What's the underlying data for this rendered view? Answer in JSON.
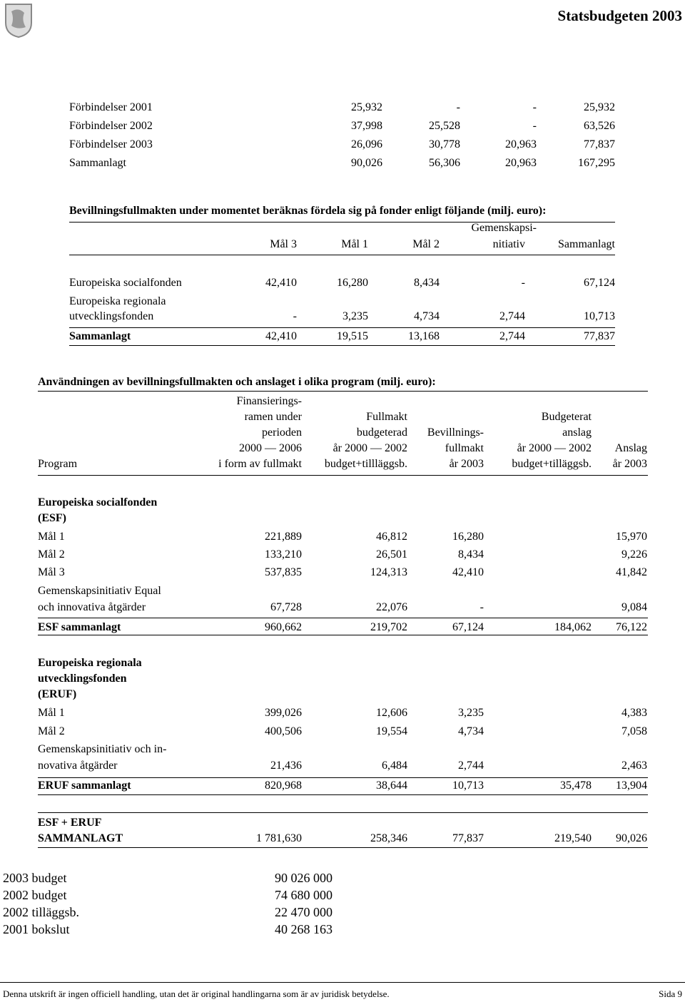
{
  "header": {
    "title": "Statsbudgeten 2003"
  },
  "table1": {
    "rows": [
      {
        "label": "Förbindelser 2001",
        "values": [
          "25,932",
          "-",
          "-",
          "25,932"
        ]
      },
      {
        "label": "Förbindelser 2002",
        "values": [
          "37,998",
          "25,528",
          "-",
          "63,526"
        ]
      },
      {
        "label": "Förbindelser 2003",
        "values": [
          "26,096",
          "30,778",
          "20,963",
          "77,837"
        ]
      },
      {
        "label": "Sammanlagt",
        "values": [
          "90,026",
          "56,306",
          "20,963",
          "167,295"
        ]
      }
    ]
  },
  "table2": {
    "title": "Bevillningsfullmakten under momentet beräknas fördela sig på fonder enligt följande (milj. euro):",
    "columns": [
      [
        "Mål 3"
      ],
      [
        "Mål 1"
      ],
      [
        "Mål 2"
      ],
      [
        "Gemenskapsi-",
        "nitiativ"
      ],
      [
        "Sammanlagt"
      ]
    ],
    "rows": [
      {
        "label": [
          "Europeiska socialfonden"
        ],
        "values": [
          "42,410",
          "16,280",
          "8,434",
          "-",
          "67,124"
        ]
      },
      {
        "label": [
          "Europeiska regionala",
          "utvecklingsfonden"
        ],
        "values": [
          "-",
          "3,235",
          "4,734",
          "2,744",
          "10,713"
        ]
      },
      {
        "label": [
          "Sammanlagt"
        ],
        "values": [
          "42,410",
          "19,515",
          "13,168",
          "2,744",
          "77,837"
        ]
      }
    ]
  },
  "table3": {
    "title": "Användningen av bevillningsfullmakten och anslaget i olika program (milj. euro):",
    "program_header": "Program",
    "columns": [
      [
        "Finansierings-",
        "ramen under",
        "perioden",
        "2000 — 2006",
        "i form av fullmakt"
      ],
      [
        "Fullmakt",
        "budgeterad",
        "år 2000 — 2002",
        "budget+tillläggsb."
      ],
      [
        "Bevillnings-",
        "fullmakt",
        "år 2003"
      ],
      [
        "Budgeterat",
        "anslag",
        "år 2000 — 2002",
        "budget+tilläggsb."
      ],
      [
        "Anslag",
        "år 2003"
      ]
    ],
    "sections": [
      {
        "heading": [
          "Europeiska socialfonden",
          "(ESF)"
        ],
        "rows": [
          {
            "label": [
              "Mål 1"
            ],
            "values": [
              "221,889",
              "46,812",
              "16,280",
              null,
              "15,970"
            ]
          },
          {
            "label": [
              "Mål 2"
            ],
            "values": [
              "133,210",
              "26,501",
              "8,434",
              null,
              "9,226"
            ]
          },
          {
            "label": [
              "Mål 3"
            ],
            "values": [
              "537,835",
              "124,313",
              "42,410",
              null,
              "41,842"
            ]
          },
          {
            "label": [
              "Gemenskapsinitiativ Equal",
              "och innovativa åtgärder"
            ],
            "values": [
              "67,728",
              "22,076",
              "-",
              null,
              "9,084"
            ]
          }
        ],
        "total": {
          "label": "ESF sammanlagt",
          "values": [
            "960,662",
            "219,702",
            "67,124",
            "184,062",
            "76,122"
          ]
        }
      },
      {
        "heading": [
          "Europeiska regionala",
          "utvecklingsfonden",
          "(ERUF)"
        ],
        "rows": [
          {
            "label": [
              "Mål 1"
            ],
            "values": [
              "399,026",
              "12,606",
              "3,235",
              null,
              "4,383"
            ]
          },
          {
            "label": [
              "Mål 2"
            ],
            "values": [
              "400,506",
              "19,554",
              "4,734",
              null,
              "7,058"
            ]
          },
          {
            "label": [
              "Gemenskapsinitiativ och in-",
              "novativa åtgärder"
            ],
            "values": [
              "21,436",
              "6,484",
              "2,744",
              null,
              "2,463"
            ]
          }
        ],
        "total": {
          "label": "ERUF sammanlagt",
          "values": [
            "820,968",
            "38,644",
            "10,713",
            "35,478",
            "13,904"
          ]
        }
      }
    ],
    "grand_total": {
      "label": [
        "ESF + ERUF",
        "SAMMANLAGT"
      ],
      "values": [
        "1 781,630",
        "258,346",
        "77,837",
        "219,540",
        "90,026"
      ]
    }
  },
  "budget": [
    [
      "2003 budget",
      "90 026 000"
    ],
    [
      "2002 budget",
      "74 680 000"
    ],
    [
      "2002 tilläggsb.",
      "22 470 000"
    ],
    [
      "2001 bokslut",
      "40 268 163"
    ]
  ],
  "footer": {
    "text": "Denna utskrift är ingen officiell handling, utan det är original handlingarna som är av juridisk betydelse.",
    "page": "Sida 9"
  }
}
